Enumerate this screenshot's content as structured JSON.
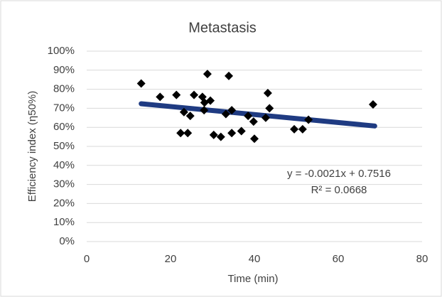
{
  "chart_data": {
    "type": "scatter",
    "title": "Metastasis",
    "x_label": "Time (min)",
    "y_label": "Efficiency index (η50%)",
    "series": [
      {
        "name": "Metastasis",
        "color": "#000000",
        "x": [
          13,
          17.5,
          21.4,
          22.4,
          23.2,
          24.1,
          24.7,
          25.6,
          27.6,
          28.1,
          28,
          28.8,
          29.5,
          30.3,
          32,
          33.2,
          33.9,
          34.6,
          34.6,
          36.9,
          38.5,
          39.8,
          40,
          42.7,
          43.2,
          43.6,
          49.5,
          51.5,
          52.9,
          68.3
        ],
        "values": [
          83,
          76,
          77,
          57,
          68,
          57,
          66,
          77,
          76,
          73,
          69,
          88,
          74,
          56,
          55,
          67,
          87,
          69,
          57,
          58,
          66,
          63,
          54,
          65,
          78,
          70,
          59,
          59,
          64,
          72
        ]
      }
    ],
    "trendline": {
      "color": "#1f3b82",
      "x": [
        13,
        68.7
      ],
      "values": [
        72.4,
        60.7
      ]
    },
    "annotations": [
      "y = -0.0021x + 0.7516",
      "R² = 0.0668"
    ],
    "xlim": [
      0,
      80
    ],
    "xticks": [
      0,
      20,
      40,
      60,
      80
    ],
    "ylim": [
      0,
      100
    ],
    "yticks": [
      {
        "value": 0,
        "label": "0%"
      },
      {
        "value": 10,
        "label": "10%"
      },
      {
        "value": 20,
        "label": "20%"
      },
      {
        "value": 30,
        "label": "30%"
      },
      {
        "value": 40,
        "label": "40%"
      },
      {
        "value": 50,
        "label": "50%"
      },
      {
        "value": 60,
        "label": "60%"
      },
      {
        "value": 70,
        "label": "70%"
      },
      {
        "value": 80,
        "label": "80%"
      },
      {
        "value": 90,
        "label": "90%"
      },
      {
        "value": 100,
        "label": "100%"
      }
    ],
    "grid": true
  }
}
